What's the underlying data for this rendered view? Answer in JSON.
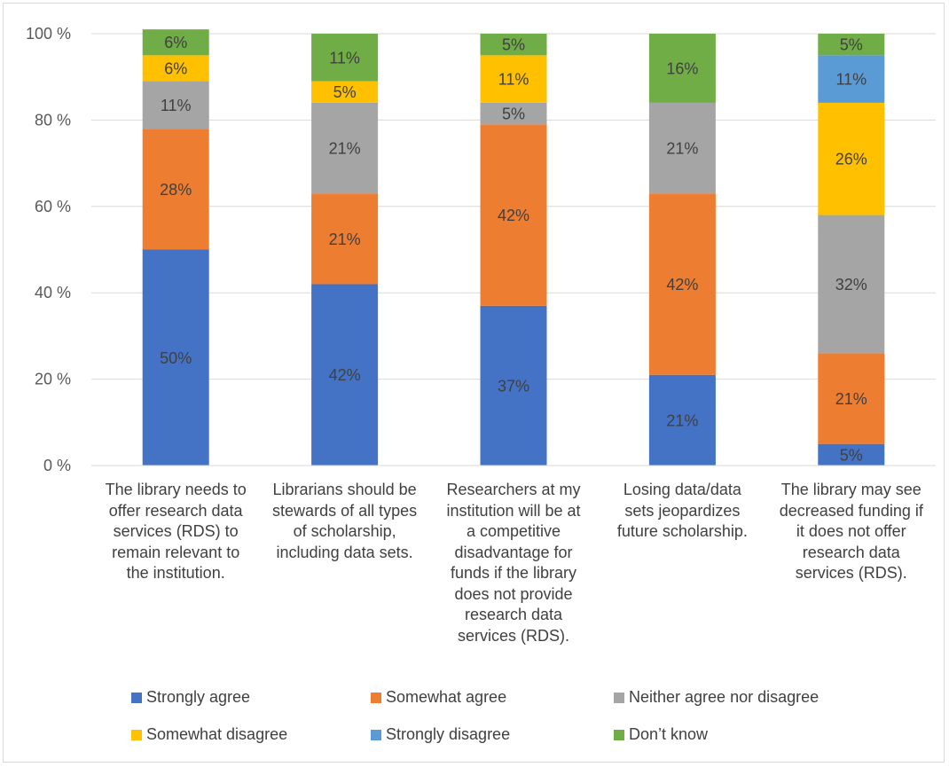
{
  "chart_data": {
    "type": "bar",
    "stacked": true,
    "percent": true,
    "categories": [
      "The library needs to offer research data services (RDS) to remain relevant to the institution.",
      "Librarians should be stewards of all types of scholarship, including data sets.",
      "Researchers at my institution will be at a competitive disadvantage for funds if the library does not provide research data services (RDS).",
      "Losing data/data sets jeopardizes future scholarship.",
      "The library may see decreased funding if it does not offer research data services (RDS)."
    ],
    "category_lines": [
      [
        "The library needs to",
        "offer research data",
        "services (RDS) to",
        "remain relevant to",
        "the institution."
      ],
      [
        "Librarians should be",
        "stewards of all types",
        "of scholarship,",
        "including data sets."
      ],
      [
        "Researchers at my",
        "institution will be at",
        "a competitive",
        "disadvantage for",
        "funds if the library",
        "does not provide",
        "research data",
        "services (RDS)."
      ],
      [
        "Losing data/data",
        "sets jeopardizes",
        "future scholarship."
      ],
      [
        "The library may see",
        "decreased funding if",
        "it does not offer",
        "research data",
        "services (RDS)."
      ]
    ],
    "series": [
      {
        "name": "Strongly agree",
        "color": "#4472C4",
        "values": [
          50,
          42,
          37,
          21,
          5
        ],
        "labels": [
          "50%",
          "42%",
          "37%",
          "21%",
          "5%"
        ]
      },
      {
        "name": "Somewhat agree",
        "color": "#ED7D31",
        "values": [
          28,
          21,
          42,
          42,
          21
        ],
        "labels": [
          "28%",
          "21%",
          "42%",
          "42%",
          "21%"
        ]
      },
      {
        "name": "Neither agree nor disagree",
        "color": "#A5A5A5",
        "values": [
          11,
          21,
          5,
          21,
          32
        ],
        "labels": [
          "11%",
          "21%",
          "5%",
          "21%",
          "32%"
        ]
      },
      {
        "name": "Somewhat disagree",
        "color": "#FFC000",
        "values": [
          6,
          5,
          11,
          0,
          26
        ],
        "labels": [
          "6%",
          "5%",
          "11%",
          "",
          "26%"
        ]
      },
      {
        "name": "Strongly disagree",
        "color": "#5B9BD5",
        "values": [
          0,
          0,
          0,
          0,
          11
        ],
        "labels": [
          "",
          "",
          "",
          "",
          "11%"
        ]
      },
      {
        "name": "Don’t know",
        "color": "#70AD47",
        "values": [
          6,
          11,
          5,
          16,
          5
        ],
        "labels": [
          "6%",
          "11%",
          "5%",
          "16%",
          "5%"
        ]
      }
    ],
    "yticks": [
      "0 %",
      "20 %",
      "40 %",
      "60 %",
      "80 %",
      "100 %"
    ],
    "ylim": [
      0,
      100
    ],
    "grid": true,
    "legend_position": "bottom"
  }
}
